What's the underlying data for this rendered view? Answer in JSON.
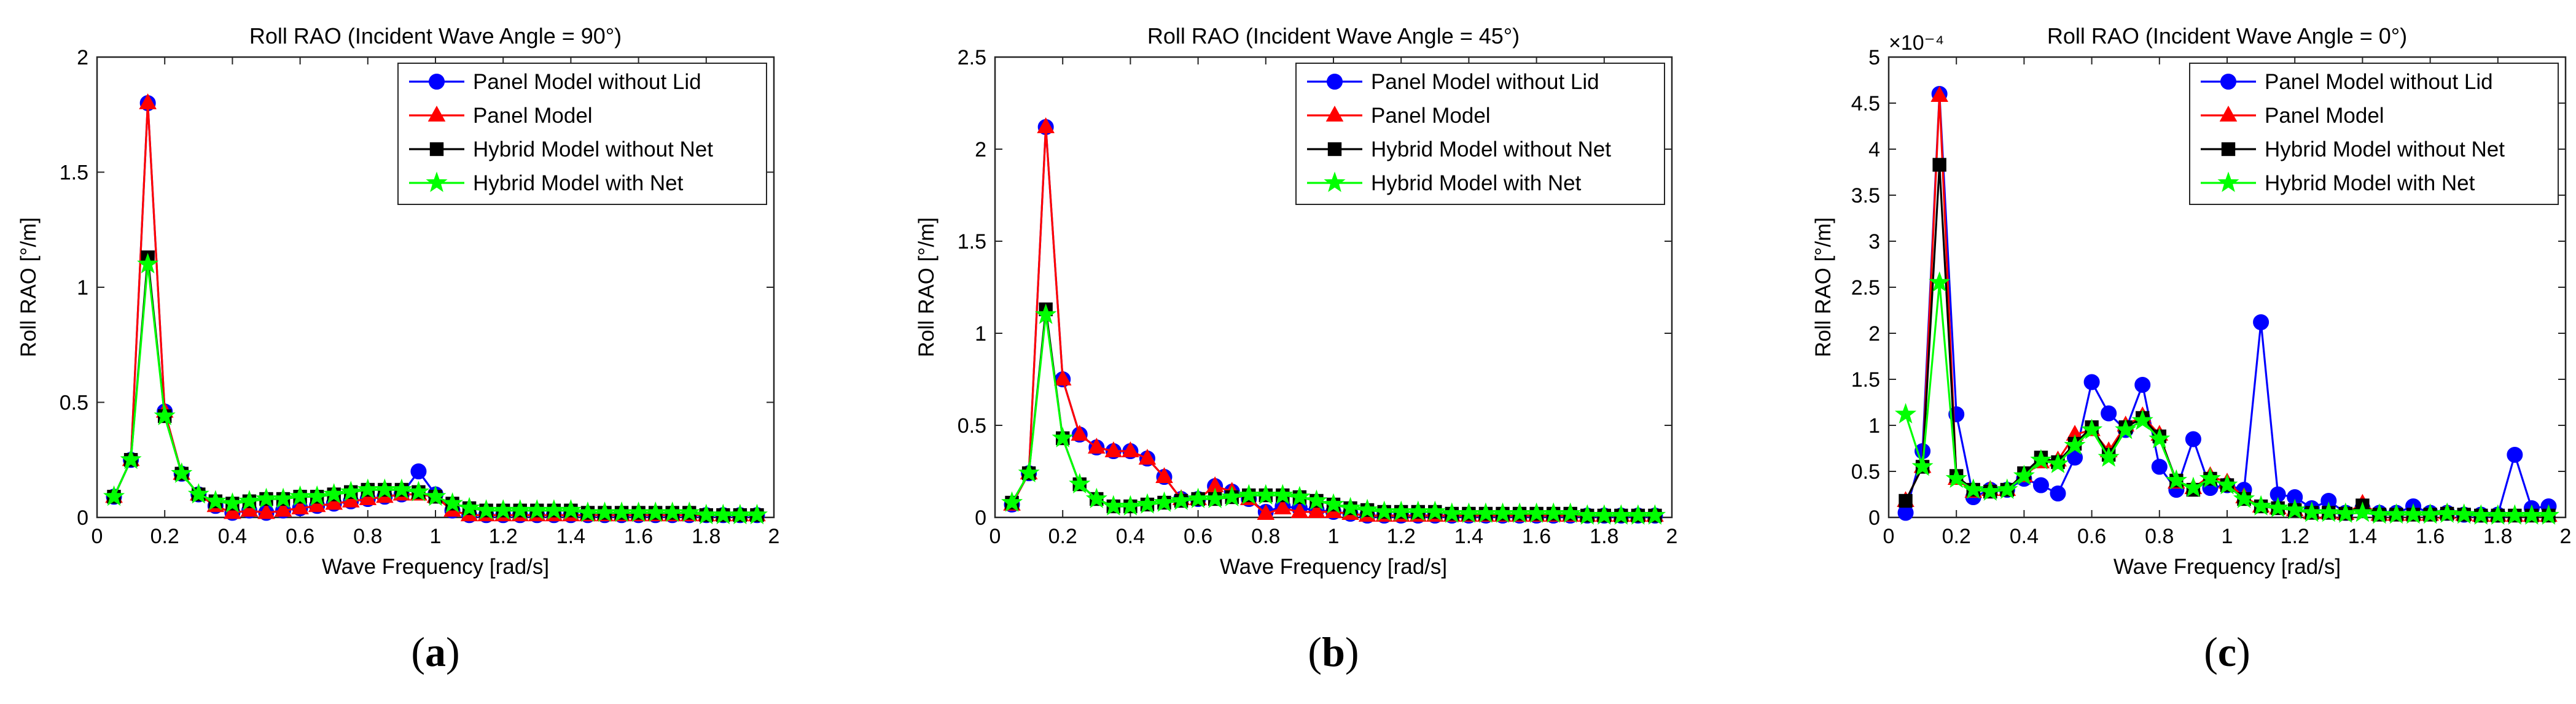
{
  "colors": {
    "panel_without_lid": "#0000ff",
    "panel": "#ff0000",
    "hybrid_without_net": "#000000",
    "hybrid_with_net": "#00ff00"
  },
  "chart_data": [
    {
      "type": "line",
      "caption_letter": "a",
      "title": "Roll RAO (Incident Wave Angle = 90°)",
      "xlabel": "Wave Frequency [rad/s]",
      "ylabel": "Roll RAO [°/m]",
      "exponent_label": "",
      "xlim": [
        0,
        2
      ],
      "ylim": [
        0,
        2
      ],
      "xticks": [
        0,
        0.2,
        0.4,
        0.6,
        0.8,
        1,
        1.2,
        1.4,
        1.6,
        1.8,
        2
      ],
      "xtick_labels": [
        "0",
        "0.2",
        "0.4",
        "0.6",
        "0.8",
        "1",
        "1.2",
        "1.4",
        "1.6",
        "1.8",
        "2"
      ],
      "yticks": [
        0,
        0.5,
        1,
        1.5,
        2
      ],
      "ytick_labels": [
        "0",
        "0.5",
        "1",
        "1.5",
        "2"
      ],
      "legend_position": "top-right",
      "x": [
        0.05,
        0.1,
        0.15,
        0.2,
        0.25,
        0.3,
        0.35,
        0.4,
        0.45,
        0.5,
        0.55,
        0.6,
        0.65,
        0.7,
        0.75,
        0.8,
        0.85,
        0.9,
        0.95,
        1.0,
        1.05,
        1.1,
        1.15,
        1.2,
        1.25,
        1.3,
        1.35,
        1.4,
        1.45,
        1.5,
        1.55,
        1.6,
        1.65,
        1.7,
        1.75,
        1.8,
        1.85,
        1.9,
        1.95
      ],
      "series": [
        {
          "name": "Panel Model without Lid",
          "key": "panel_without_lid",
          "marker": "circle",
          "values": [
            0.09,
            0.25,
            1.8,
            0.46,
            0.19,
            0.1,
            0.05,
            0.02,
            0.03,
            0.02,
            0.03,
            0.04,
            0.05,
            0.06,
            0.07,
            0.08,
            0.09,
            0.1,
            0.2,
            0.1,
            0.03,
            0.01,
            0.01,
            0.01,
            0.01,
            0.01,
            0.01,
            0.01,
            0.01,
            0.01,
            0.01,
            0.01,
            0.01,
            0.01,
            0.01,
            0.01,
            0.01,
            0.01,
            0.01
          ]
        },
        {
          "name": "Panel Model",
          "key": "panel",
          "marker": "triangle",
          "values": [
            0.09,
            0.25,
            1.8,
            0.46,
            0.19,
            0.1,
            0.05,
            0.02,
            0.03,
            0.02,
            0.03,
            0.04,
            0.05,
            0.06,
            0.07,
            0.08,
            0.09,
            0.1,
            0.1,
            0.09,
            0.03,
            0.01,
            0.01,
            0.01,
            0.01,
            0.01,
            0.01,
            0.01,
            0.01,
            0.01,
            0.01,
            0.01,
            0.01,
            0.01,
            0.01,
            0.01,
            0.01,
            0.01,
            0.01
          ]
        },
        {
          "name": "Hybrid Model without Net",
          "key": "hybrid_without_net",
          "marker": "square",
          "values": [
            0.09,
            0.25,
            1.13,
            0.44,
            0.19,
            0.1,
            0.07,
            0.06,
            0.07,
            0.08,
            0.08,
            0.09,
            0.09,
            0.1,
            0.11,
            0.12,
            0.12,
            0.12,
            0.11,
            0.09,
            0.06,
            0.04,
            0.03,
            0.03,
            0.03,
            0.03,
            0.03,
            0.03,
            0.02,
            0.02,
            0.02,
            0.02,
            0.02,
            0.02,
            0.02,
            0.01,
            0.01,
            0.01,
            0.01
          ]
        },
        {
          "name": "Hybrid Model with Net",
          "key": "hybrid_with_net",
          "marker": "star",
          "values": [
            0.09,
            0.25,
            1.1,
            0.44,
            0.19,
            0.1,
            0.07,
            0.06,
            0.07,
            0.08,
            0.08,
            0.09,
            0.09,
            0.1,
            0.11,
            0.12,
            0.12,
            0.12,
            0.11,
            0.09,
            0.06,
            0.04,
            0.03,
            0.03,
            0.03,
            0.03,
            0.03,
            0.03,
            0.02,
            0.02,
            0.02,
            0.02,
            0.02,
            0.02,
            0.02,
            0.01,
            0.01,
            0.01,
            0.01
          ]
        }
      ]
    },
    {
      "type": "line",
      "caption_letter": "b",
      "title": "Roll RAO (Incident Wave Angle = 45°)",
      "xlabel": "Wave Frequency [rad/s]",
      "ylabel": "Roll RAO [°/m]",
      "exponent_label": "",
      "xlim": [
        0,
        2
      ],
      "ylim": [
        0,
        2.5
      ],
      "xticks": [
        0,
        0.2,
        0.4,
        0.6,
        0.8,
        1,
        1.2,
        1.4,
        1.6,
        1.8,
        2
      ],
      "xtick_labels": [
        "0",
        "0.2",
        "0.4",
        "0.6",
        "0.8",
        "1",
        "1.2",
        "1.4",
        "1.6",
        "1.8",
        "2"
      ],
      "yticks": [
        0,
        0.5,
        1,
        1.5,
        2,
        2.5
      ],
      "ytick_labels": [
        "0",
        "0.5",
        "1",
        "1.5",
        "2",
        "2.5"
      ],
      "legend_position": "top-right",
      "x": [
        0.05,
        0.1,
        0.15,
        0.2,
        0.25,
        0.3,
        0.35,
        0.4,
        0.45,
        0.5,
        0.55,
        0.6,
        0.65,
        0.7,
        0.75,
        0.8,
        0.85,
        0.9,
        0.95,
        1.0,
        1.05,
        1.1,
        1.15,
        1.2,
        1.25,
        1.3,
        1.35,
        1.4,
        1.45,
        1.5,
        1.55,
        1.6,
        1.65,
        1.7,
        1.75,
        1.8,
        1.85,
        1.9,
        1.95
      ],
      "series": [
        {
          "name": "Panel Model without Lid",
          "key": "panel_without_lid",
          "marker": "circle",
          "values": [
            0.07,
            0.24,
            2.12,
            0.75,
            0.45,
            0.38,
            0.36,
            0.36,
            0.32,
            0.22,
            0.1,
            0.1,
            0.17,
            0.14,
            0.1,
            0.03,
            0.06,
            0.05,
            0.04,
            0.03,
            0.02,
            0.01,
            0.01,
            0.01,
            0.01,
            0.01,
            0.01,
            0.01,
            0.01,
            0.01,
            0.01,
            0.01,
            0.01,
            0.01,
            0.01,
            0.01,
            0.01,
            0.01,
            0.01
          ]
        },
        {
          "name": "Panel Model",
          "key": "panel",
          "marker": "triangle",
          "values": [
            0.07,
            0.24,
            2.12,
            0.75,
            0.45,
            0.38,
            0.36,
            0.36,
            0.32,
            0.22,
            0.1,
            0.1,
            0.17,
            0.14,
            0.1,
            0.02,
            0.05,
            0.03,
            0.03,
            0.03,
            0.02,
            0.01,
            0.01,
            0.01,
            0.01,
            0.01,
            0.01,
            0.01,
            0.01,
            0.01,
            0.01,
            0.01,
            0.01,
            0.01,
            0.01,
            0.01,
            0.01,
            0.01,
            0.01
          ]
        },
        {
          "name": "Hybrid Model without Net",
          "key": "hybrid_without_net",
          "marker": "square",
          "values": [
            0.08,
            0.24,
            1.13,
            0.43,
            0.18,
            0.1,
            0.06,
            0.06,
            0.07,
            0.08,
            0.09,
            0.1,
            0.1,
            0.11,
            0.12,
            0.12,
            0.12,
            0.11,
            0.09,
            0.07,
            0.05,
            0.04,
            0.03,
            0.03,
            0.03,
            0.03,
            0.02,
            0.02,
            0.02,
            0.02,
            0.02,
            0.02,
            0.02,
            0.02,
            0.01,
            0.01,
            0.01,
            0.01,
            0.01
          ]
        },
        {
          "name": "Hybrid Model with Net",
          "key": "hybrid_with_net",
          "marker": "star",
          "values": [
            0.08,
            0.24,
            1.1,
            0.43,
            0.18,
            0.1,
            0.06,
            0.06,
            0.07,
            0.08,
            0.09,
            0.1,
            0.1,
            0.11,
            0.12,
            0.12,
            0.12,
            0.11,
            0.09,
            0.07,
            0.05,
            0.04,
            0.03,
            0.03,
            0.03,
            0.03,
            0.02,
            0.02,
            0.02,
            0.02,
            0.02,
            0.02,
            0.02,
            0.02,
            0.01,
            0.01,
            0.01,
            0.01,
            0.01
          ]
        }
      ]
    },
    {
      "type": "line",
      "caption_letter": "c",
      "title": "Roll RAO (Incident Wave Angle = 0°)",
      "xlabel": "Wave Frequency [rad/s]",
      "ylabel": "Roll RAO [°/m]",
      "exponent_label": "×10⁻⁴",
      "y_scale_factor": 0.0001,
      "xlim": [
        0,
        2
      ],
      "ylim": [
        0,
        5
      ],
      "xticks": [
        0,
        0.2,
        0.4,
        0.6,
        0.8,
        1,
        1.2,
        1.4,
        1.6,
        1.8,
        2
      ],
      "xtick_labels": [
        "0",
        "0.2",
        "0.4",
        "0.6",
        "0.8",
        "1",
        "1.2",
        "1.4",
        "1.6",
        "1.8",
        "2"
      ],
      "yticks": [
        0,
        0.5,
        1,
        1.5,
        2,
        2.5,
        3,
        3.5,
        4,
        4.5,
        5
      ],
      "ytick_labels": [
        "0",
        "0.5",
        "1",
        "1.5",
        "2",
        "2.5",
        "3",
        "3.5",
        "4",
        "4.5",
        "5"
      ],
      "legend_position": "top-right",
      "x": [
        0.05,
        0.1,
        0.15,
        0.2,
        0.25,
        0.3,
        0.35,
        0.4,
        0.45,
        0.5,
        0.55,
        0.6,
        0.65,
        0.7,
        0.75,
        0.8,
        0.85,
        0.9,
        0.95,
        1.0,
        1.05,
        1.1,
        1.15,
        1.2,
        1.25,
        1.3,
        1.35,
        1.4,
        1.45,
        1.5,
        1.55,
        1.6,
        1.65,
        1.7,
        1.75,
        1.8,
        1.85,
        1.9,
        1.95
      ],
      "series": [
        {
          "name": "Panel Model without Lid",
          "key": "panel_without_lid",
          "marker": "circle",
          "values": [
            0.05,
            0.72,
            4.6,
            1.12,
            0.22,
            0.3,
            0.3,
            0.42,
            0.35,
            0.26,
            0.65,
            1.47,
            1.13,
            0.95,
            1.44,
            0.55,
            0.3,
            0.85,
            0.32,
            0.35,
            0.3,
            2.12,
            0.25,
            0.22,
            0.1,
            0.18,
            0.05,
            0.1,
            0.05,
            0.05,
            0.12,
            0.05,
            0.05,
            0.03,
            0.03,
            0.03,
            0.68,
            0.1,
            0.12
          ]
        },
        {
          "name": "Panel Model",
          "key": "panel",
          "marker": "triangle",
          "values": [
            0.18,
            0.55,
            4.58,
            0.42,
            0.28,
            0.3,
            0.3,
            0.45,
            0.6,
            0.62,
            0.9,
            0.95,
            0.72,
            1.0,
            1.1,
            0.9,
            0.38,
            0.32,
            0.45,
            0.38,
            0.22,
            0.12,
            0.1,
            0.08,
            0.05,
            0.05,
            0.04,
            0.15,
            0.03,
            0.03,
            0.03,
            0.03,
            0.05,
            0.03,
            0.02,
            0.02,
            0.02,
            0.02,
            0.02
          ]
        },
        {
          "name": "Hybrid Model without Net",
          "key": "hybrid_without_net",
          "marker": "square",
          "values": [
            0.18,
            0.55,
            3.83,
            0.45,
            0.3,
            0.28,
            0.3,
            0.48,
            0.65,
            0.6,
            0.8,
            0.98,
            0.68,
            0.98,
            1.08,
            0.88,
            0.4,
            0.3,
            0.42,
            0.35,
            0.2,
            0.12,
            0.1,
            0.08,
            0.05,
            0.05,
            0.04,
            0.13,
            0.03,
            0.03,
            0.03,
            0.03,
            0.04,
            0.03,
            0.02,
            0.02,
            0.02,
            0.02,
            0.02
          ]
        },
        {
          "name": "Hybrid Model with Net",
          "key": "hybrid_with_net",
          "marker": "star",
          "values": [
            1.12,
            0.55,
            2.55,
            0.42,
            0.3,
            0.28,
            0.3,
            0.45,
            0.62,
            0.58,
            0.78,
            0.95,
            0.65,
            0.95,
            1.05,
            0.85,
            0.4,
            0.32,
            0.42,
            0.35,
            0.2,
            0.12,
            0.1,
            0.08,
            0.05,
            0.05,
            0.04,
            0.05,
            0.03,
            0.03,
            0.03,
            0.03,
            0.04,
            0.03,
            0.02,
            0.02,
            0.02,
            0.02,
            0.02
          ]
        }
      ]
    }
  ]
}
